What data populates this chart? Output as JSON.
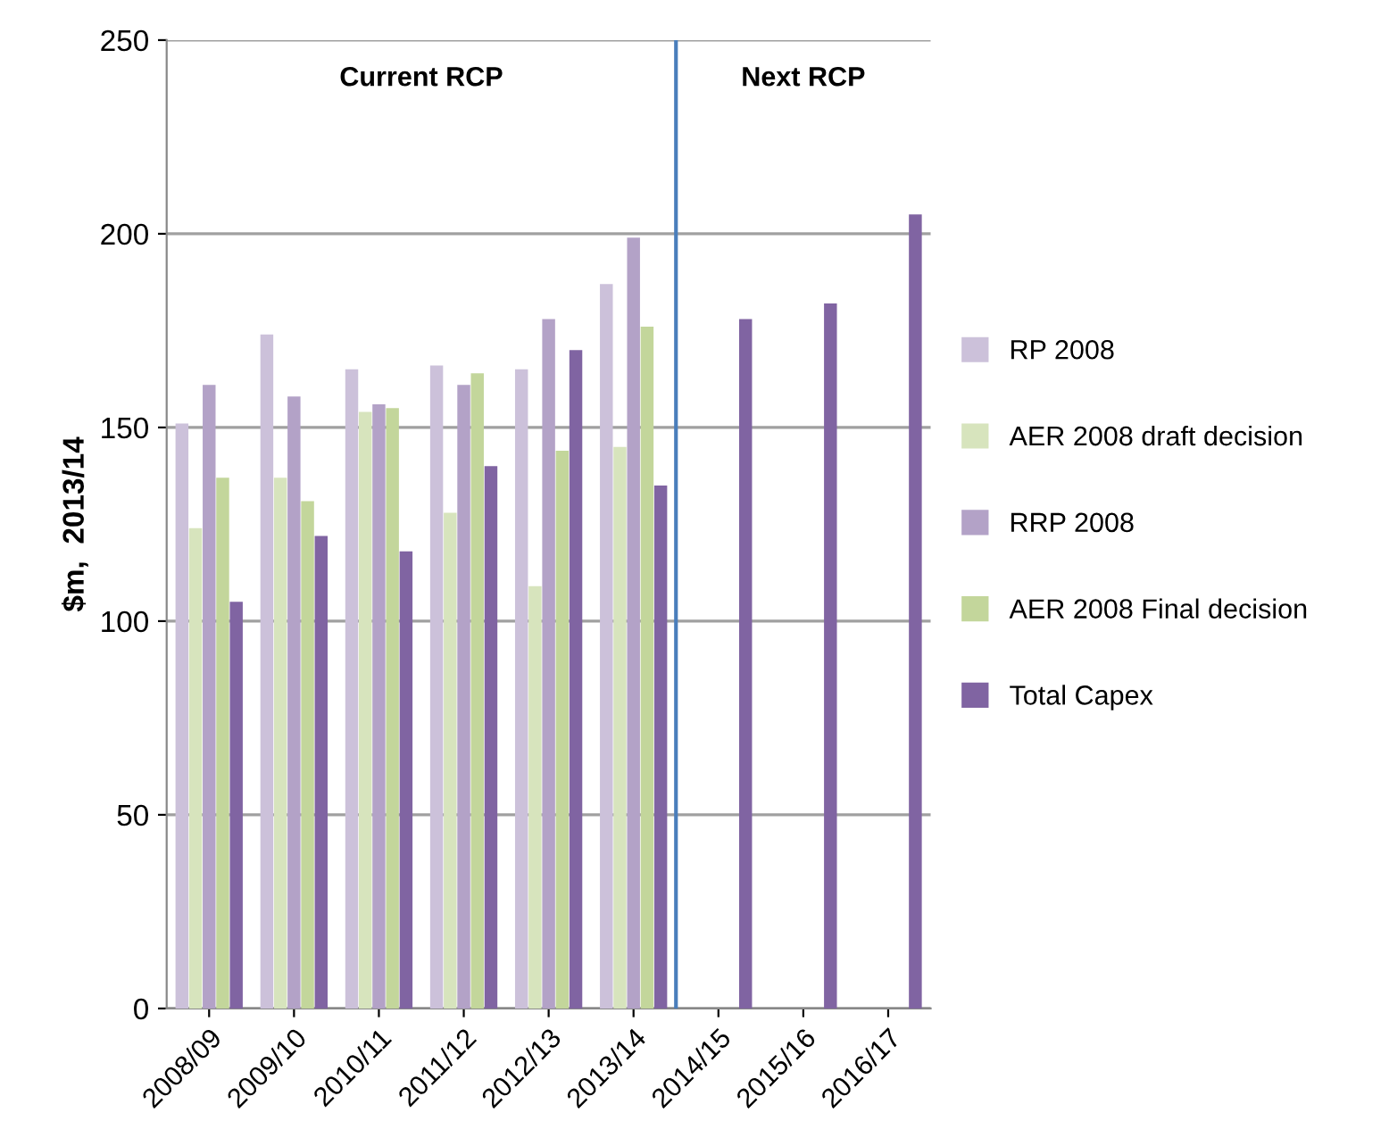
{
  "chart_data": {
    "type": "bar",
    "ylabel": "$m,  2013/14",
    "categories": [
      "2008/09",
      "2009/10",
      "2010/11",
      "2011/12",
      "2012/13",
      "2013/14",
      "2014/15",
      "2015/16",
      "2016/17"
    ],
    "series": [
      {
        "name": "RP 2008",
        "color": "#ccc1da",
        "values": [
          151,
          174,
          165,
          166,
          165,
          187,
          null,
          null,
          null
        ]
      },
      {
        "name": "AER 2008 draft decision",
        "color": "#d7e4bd",
        "values": [
          124,
          137,
          154,
          128,
          109,
          145,
          null,
          null,
          null
        ]
      },
      {
        "name": "RRP 2008",
        "color": "#b3a2c7",
        "values": [
          161,
          158,
          156,
          161,
          178,
          199,
          null,
          null,
          null
        ]
      },
      {
        "name": "AER 2008 Final decision",
        "color": "#c3d69b",
        "values": [
          137,
          131,
          155,
          164,
          144,
          176,
          null,
          null,
          null
        ]
      },
      {
        "name": "Total Capex",
        "color": "#8064a2",
        "values": [
          105,
          122,
          118,
          140,
          170,
          135,
          178,
          182,
          205
        ]
      }
    ],
    "ylim": [
      0,
      250
    ],
    "yticks": [
      0,
      50,
      100,
      150,
      200,
      250
    ],
    "grid": "y",
    "legend": "right",
    "ref_lines": [
      {
        "axis": "x",
        "value": "2014/15",
        "color": "#4a7ebb"
      }
    ],
    "annotations": [
      "Current RCP",
      "Next RCP"
    ]
  }
}
